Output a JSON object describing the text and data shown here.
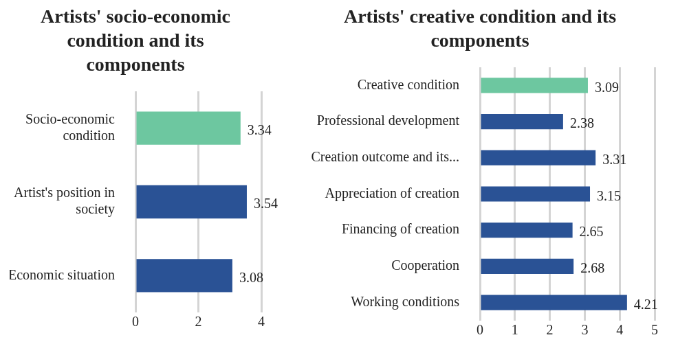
{
  "chart_data": [
    {
      "type": "bar",
      "title": "Artists' socio-economic condition and its components",
      "orientation": "horizontal",
      "categories": [
        "Socio-economic condition",
        "Artist's position in society",
        "Economic situation"
      ],
      "values": [
        3.34,
        3.54,
        3.08
      ],
      "colors": [
        "#6dc7a0",
        "#2a5295",
        "#2a5295"
      ],
      "xlim": [
        0,
        4
      ],
      "xticks": [
        0,
        2,
        4
      ],
      "grid": "x",
      "legend": false,
      "data_labels": true
    },
    {
      "type": "bar",
      "title": "Artists' creative condition and its components",
      "orientation": "horizontal",
      "categories": [
        "Creative condition",
        "Professional development",
        "Creation outcome and its...",
        "Appreciation of creation",
        "Financing of creation",
        "Cooperation",
        "Working conditions"
      ],
      "values": [
        3.09,
        2.38,
        3.31,
        3.15,
        2.65,
        2.68,
        4.21
      ],
      "colors": [
        "#6dc7a0",
        "#2a5295",
        "#2a5295",
        "#2a5295",
        "#2a5295",
        "#2a5295",
        "#2a5295"
      ],
      "xlim": [
        0,
        5
      ],
      "xticks": [
        0,
        1,
        2,
        3,
        4,
        5
      ],
      "grid": "x",
      "legend": false,
      "data_labels": true
    }
  ]
}
